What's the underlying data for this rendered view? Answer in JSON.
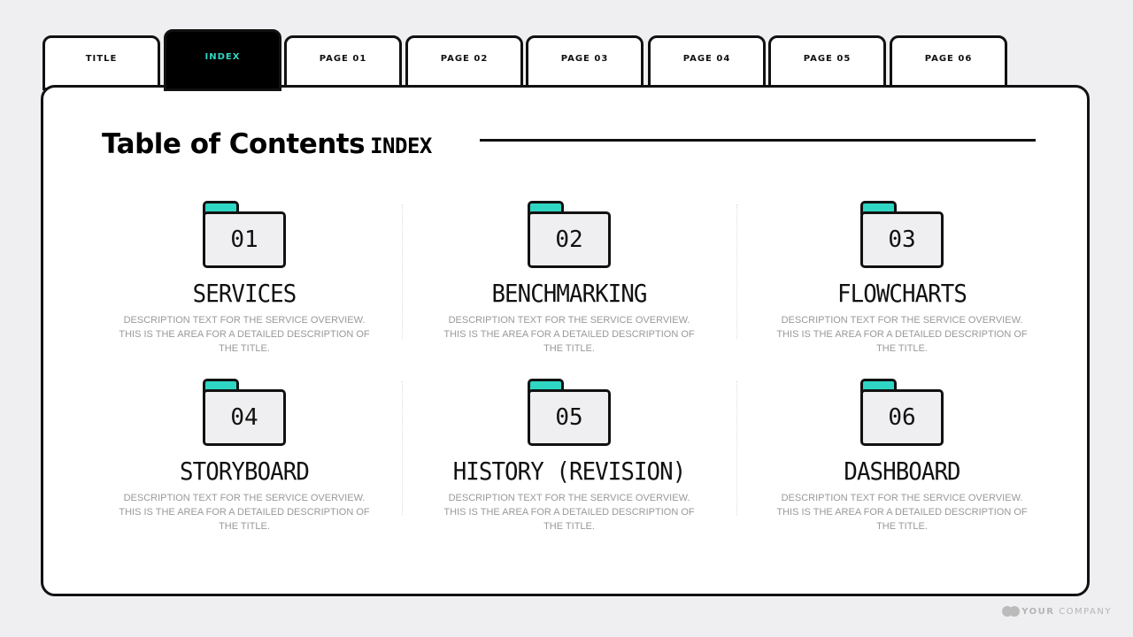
{
  "tabs": [
    {
      "label": "TITLE"
    },
    {
      "label": "INDEX",
      "active": true
    },
    {
      "label": "PAGE 01"
    },
    {
      "label": "PAGE 02"
    },
    {
      "label": "PAGE 03"
    },
    {
      "label": "PAGE 04"
    },
    {
      "label": "PAGE 05"
    },
    {
      "label": "PAGE 06"
    }
  ],
  "header": {
    "title": "Table of Contents",
    "subtitle": "INDEX"
  },
  "items": [
    {
      "number": "01",
      "title": "SERVICES",
      "description": "DESCRIPTION TEXT FOR THE SERVICE OVERVIEW. THIS IS THE AREA FOR A DETAILED DESCRIPTION OF THE TITLE."
    },
    {
      "number": "02",
      "title": "BENCHMARKING",
      "description": "DESCRIPTION TEXT FOR THE SERVICE OVERVIEW. THIS IS THE AREA FOR A DETAILED DESCRIPTION OF THE TITLE."
    },
    {
      "number": "03",
      "title": "FLOWCHARTS",
      "description": "DESCRIPTION TEXT FOR THE SERVICE OVERVIEW. THIS IS THE AREA FOR A DETAILED DESCRIPTION OF THE TITLE."
    },
    {
      "number": "04",
      "title": "STORYBOARD",
      "description": "DESCRIPTION TEXT FOR THE SERVICE OVERVIEW. THIS IS THE AREA FOR A DETAILED DESCRIPTION OF THE TITLE."
    },
    {
      "number": "05",
      "title": "HISTORY (REVISION)",
      "description": "DESCRIPTION TEXT FOR THE SERVICE OVERVIEW. THIS IS THE AREA FOR A DETAILED DESCRIPTION OF THE TITLE."
    },
    {
      "number": "06",
      "title": "DASHBOARD",
      "description": "DESCRIPTION TEXT FOR THE SERVICE OVERVIEW. THIS IS THE AREA FOR A DETAILED DESCRIPTION OF THE TITLE."
    }
  ],
  "footer": {
    "brand_bold": "YOUR",
    "brand_light": "COMPANY"
  },
  "colors": {
    "accent": "#2fd6c4",
    "border": "#111111",
    "background": "#efeff1"
  }
}
